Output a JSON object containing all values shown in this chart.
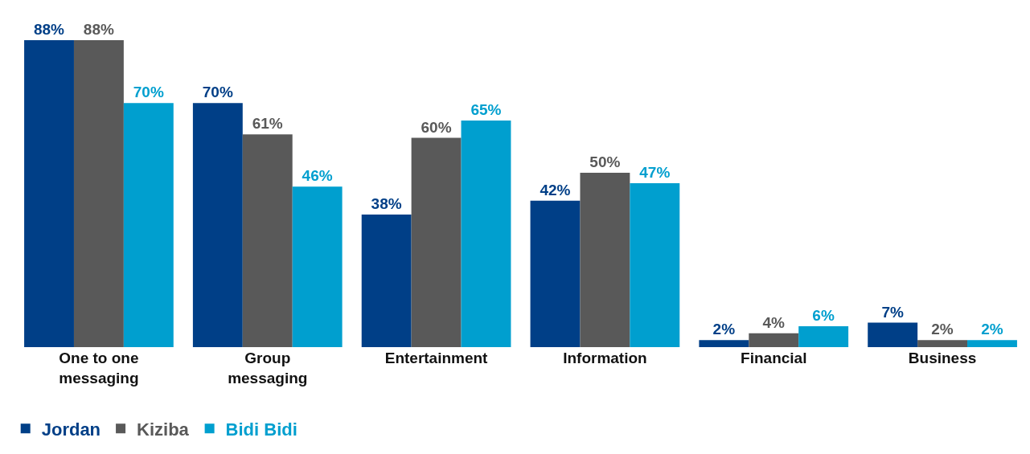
{
  "chart_data": {
    "type": "bar",
    "categories": [
      "One to one messaging",
      "Group messaging",
      "Entertainment",
      "Information",
      "Financial",
      "Business"
    ],
    "series": [
      {
        "name": "Jordan",
        "color": "#003f87",
        "values": [
          88,
          70,
          38,
          42,
          2,
          7
        ],
        "value_labels": [
          "88%",
          "70%",
          "38%",
          "42%",
          "2%",
          "7%"
        ]
      },
      {
        "name": "Kiziba",
        "color": "#595959",
        "values": [
          88,
          61,
          60,
          50,
          4,
          2
        ],
        "value_labels": [
          "88%",
          "61%",
          "60%",
          "50%",
          "4%",
          "2%"
        ]
      },
      {
        "name": "Bidi Bidi",
        "color": "#009fcf",
        "values": [
          70,
          46,
          65,
          47,
          6,
          2
        ],
        "value_labels": [
          "70%",
          "46%",
          "65%",
          "47%",
          "6%",
          "2%"
        ]
      }
    ],
    "legend": "bottom left",
    "grid": false
  }
}
